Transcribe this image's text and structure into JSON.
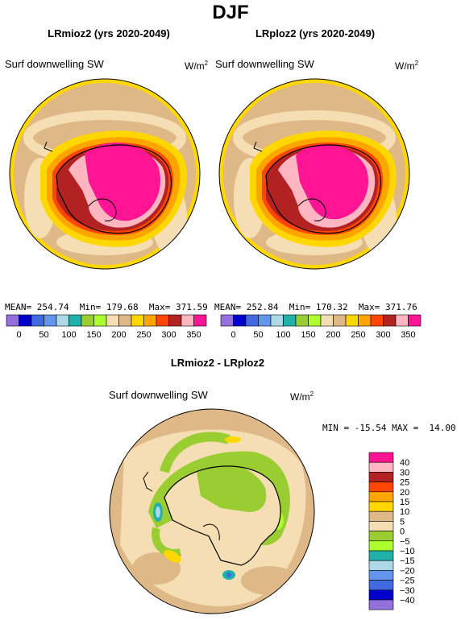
{
  "page_title": "DJF",
  "panels": [
    {
      "title": "LRmioz2 (yrs 2020-2049)",
      "variable": "Surf downwelling SW",
      "units": "W/m",
      "units_sup": "2",
      "stats": {
        "mean_label": "MEAN=",
        "mean": "254.74",
        "min_label": "Min=",
        "min": "179.68",
        "max_label": "Max=",
        "max": "371.59"
      }
    },
    {
      "title": "LRploz2 (yrs 2020-2049)",
      "variable": "Surf downwelling SW",
      "units": "W/m",
      "units_sup": "2",
      "stats": {
        "mean_label": "MEAN=",
        "mean": "252.84",
        "min_label": "Min=",
        "min": "170.32",
        "max_label": "Max=",
        "max": "371.76"
      }
    }
  ],
  "abs_colorbar": {
    "colors": [
      "#9370db",
      "#0000cd",
      "#4169e1",
      "#6495ed",
      "#add8e6",
      "#20b2aa",
      "#9acd32",
      "#adff2f",
      "#f5deb3",
      "#deb887",
      "#ffd700",
      "#ffa500",
      "#ff4500",
      "#b22222",
      "#ffb6c1",
      "#ff1493"
    ],
    "labels": [
      "0",
      "50",
      "100",
      "150",
      "200",
      "250",
      "300",
      "350"
    ]
  },
  "diff_panel": {
    "title": "LRmioz2 - LRploz2",
    "variable": "Surf downwelling SW",
    "units": "W/m",
    "units_sup": "2",
    "stats_text": "MIN = -15.54 MAX =  14.00"
  },
  "diff_colorbar": {
    "colors": [
      "#ff1493",
      "#ffb6c1",
      "#b22222",
      "#ff4500",
      "#ffa500",
      "#ffd700",
      "#deb887",
      "#f5deb3",
      "#9acd32",
      "#adff2f",
      "#20b2aa",
      "#add8e6",
      "#6495ed",
      "#4169e1",
      "#0000cd",
      "#9370db"
    ],
    "labels": [
      "40",
      "30",
      "25",
      "20",
      "15",
      "10",
      "5",
      "0",
      "−5",
      "−10",
      "−15",
      "−20",
      "−25",
      "−30",
      "−40"
    ]
  }
}
